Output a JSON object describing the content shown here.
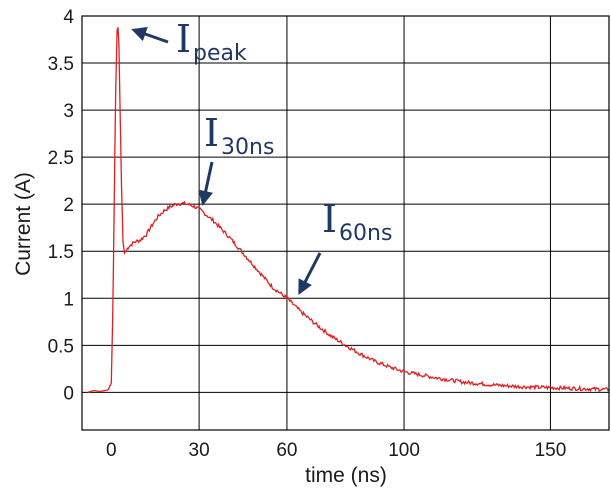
{
  "chart_data": {
    "type": "line",
    "title": "",
    "xlabel": "time (ns)",
    "ylabel": "Current (A)",
    "xlim": [
      -10,
      170
    ],
    "ylim": [
      -0.4,
      4.0
    ],
    "grid": true,
    "line_color": "#e02020",
    "annotation_color": "#1f3864",
    "x_ticks": [
      0,
      30,
      60,
      100,
      150
    ],
    "y_ticks": [
      0,
      0.5,
      1,
      1.5,
      2,
      2.5,
      3,
      3.5,
      4
    ],
    "x_tick_labels": [
      "0",
      "30",
      "60",
      "100",
      "150"
    ],
    "y_tick_labels": [
      "0",
      "0.5",
      "1",
      "1.5",
      "2",
      "2.5",
      "3",
      "3.5",
      "4"
    ],
    "x_grid": [
      -10,
      30,
      60,
      100,
      150
    ],
    "annotations": [
      {
        "main": "I",
        "sub": "peak",
        "points_to": [
          3,
          3.85
        ]
      },
      {
        "main": "I",
        "sub": "30ns",
        "points_to": [
          30,
          1.95
        ]
      },
      {
        "main": "I",
        "sub": "60ns",
        "points_to": [
          63,
          1.0
        ]
      }
    ],
    "series": [
      {
        "x": [
          -8,
          -6,
          -4,
          -2,
          -1,
          0,
          0.5,
          1,
          1.5,
          2,
          2.3,
          2.6,
          3,
          3.5,
          4,
          4.5,
          5,
          5.5,
          6,
          8,
          10,
          12,
          14,
          16,
          18,
          20,
          22,
          24,
          26,
          28,
          30,
          35,
          40,
          45,
          50,
          55,
          60,
          65,
          70,
          75,
          80,
          85,
          90,
          95,
          100,
          110,
          120,
          130,
          140,
          150,
          160,
          170
        ],
        "y": [
          0.0,
          0.02,
          0.01,
          0.02,
          0.03,
          0.1,
          0.8,
          2.0,
          3.2,
          3.85,
          3.88,
          3.7,
          3.0,
          2.2,
          1.6,
          1.48,
          1.5,
          1.53,
          1.55,
          1.6,
          1.62,
          1.68,
          1.78,
          1.87,
          1.93,
          1.97,
          2.0,
          2.01,
          2.0,
          1.98,
          1.95,
          1.82,
          1.66,
          1.48,
          1.3,
          1.12,
          1.0,
          0.85,
          0.72,
          0.6,
          0.5,
          0.41,
          0.33,
          0.27,
          0.22,
          0.16,
          0.11,
          0.08,
          0.06,
          0.05,
          0.04,
          0.03
        ]
      }
    ]
  }
}
